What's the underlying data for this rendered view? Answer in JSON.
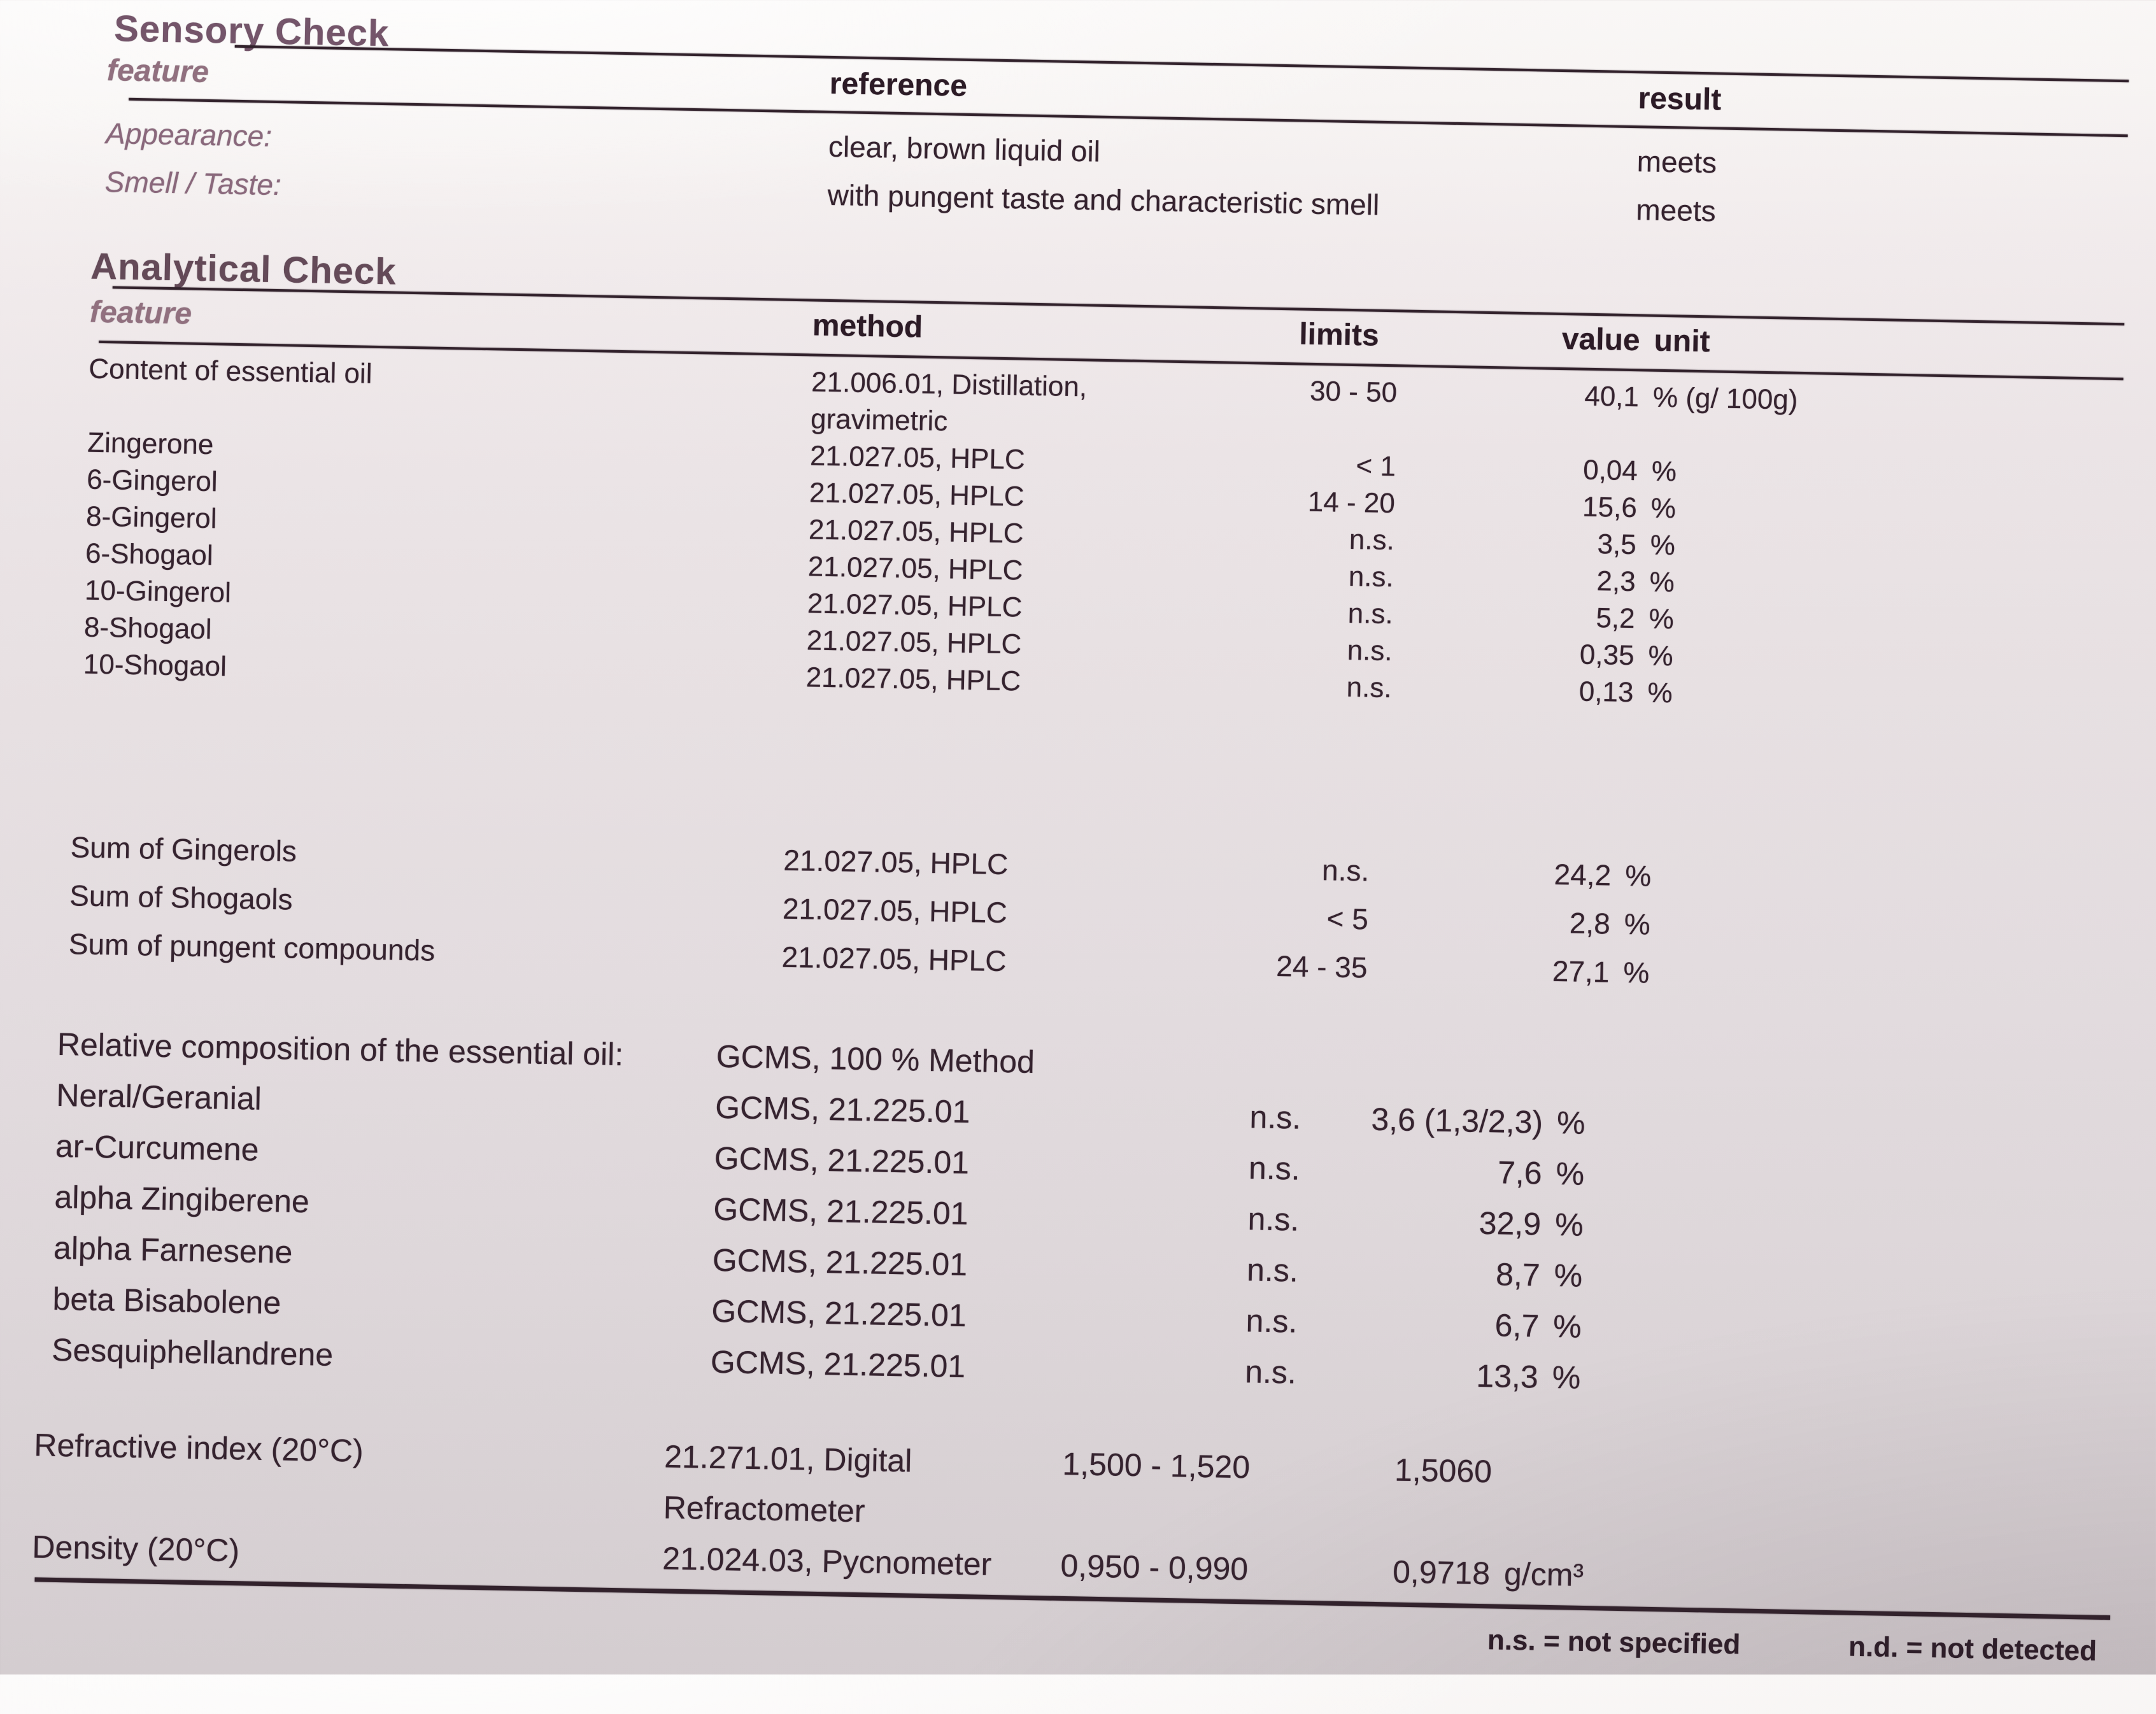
{
  "colors": {
    "ink": "#35232f",
    "heading_mauve": "#74556a",
    "label_mauve": "#8a687c",
    "rule": "#32222c"
  },
  "sensory": {
    "title": "Sensory Check",
    "columns": {
      "feature": "feature",
      "reference": "reference",
      "result": "result"
    },
    "rows": [
      {
        "feature": "Appearance:",
        "reference": "clear, brown liquid oil",
        "result": "meets"
      },
      {
        "feature": "Smell / Taste:",
        "reference": "with pungent taste and characteristic smell",
        "result": "meets"
      }
    ]
  },
  "analytical": {
    "title": "Analytical Check",
    "columns": {
      "feature": "feature",
      "method": "method",
      "limits": "limits",
      "value": "value",
      "unit": "unit"
    },
    "groups": [
      [
        {
          "feature": "Content of essential oil",
          "method": "21.006.01, Distillation,\ngravimetric",
          "limits": "30 - 50",
          "value": "40,1",
          "unit": "% (g/ 100g)"
        },
        {
          "feature": "Zingerone",
          "method": "21.027.05, HPLC",
          "limits": "< 1",
          "value": "0,04",
          "unit": "%"
        },
        {
          "feature": "6-Gingerol",
          "method": "21.027.05, HPLC",
          "limits": "14 - 20",
          "value": "15,6",
          "unit": "%"
        },
        {
          "feature": "8-Gingerol",
          "method": "21.027.05, HPLC",
          "limits": "n.s.",
          "value": "3,5",
          "unit": "%"
        },
        {
          "feature": "6-Shogaol",
          "method": "21.027.05, HPLC",
          "limits": "n.s.",
          "value": "2,3",
          "unit": "%"
        },
        {
          "feature": "10-Gingerol",
          "method": "21.027.05, HPLC",
          "limits": "n.s.",
          "value": "5,2",
          "unit": "%"
        },
        {
          "feature": "8-Shogaol",
          "method": "21.027.05, HPLC",
          "limits": "n.s.",
          "value": "0,35",
          "unit": "%"
        },
        {
          "feature": "10-Shogaol",
          "method": "21.027.05, HPLC",
          "limits": "n.s.",
          "value": "0,13",
          "unit": "%"
        }
      ],
      [
        {
          "feature": "Sum of Gingerols",
          "method": "21.027.05, HPLC",
          "limits": "n.s.",
          "value": "24,2",
          "unit": "%"
        },
        {
          "feature": "Sum of Shogaols",
          "method": "21.027.05, HPLC",
          "limits": "< 5",
          "value": "2,8",
          "unit": "%"
        },
        {
          "feature": "Sum of pungent compounds",
          "method": "21.027.05, HPLC",
          "limits": "24 - 35",
          "value": "27,1",
          "unit": "%"
        }
      ],
      [
        {
          "feature": "Relative composition of the essential oil:",
          "method": "GCMS, 100 % Method",
          "limits": "",
          "value": "",
          "unit": ""
        },
        {
          "feature": "Neral/Geranial",
          "method": "GCMS, 21.225.01",
          "limits": "n.s.",
          "value": "3,6 (1,3/2,3)",
          "unit": "%"
        },
        {
          "feature": "ar-Curcumene",
          "method": "GCMS, 21.225.01",
          "limits": "n.s.",
          "value": "7,6",
          "unit": "%"
        },
        {
          "feature": "alpha Zingiberene",
          "method": "GCMS, 21.225.01",
          "limits": "n.s.",
          "value": "32,9",
          "unit": "%"
        },
        {
          "feature": "alpha Farnesene",
          "method": "GCMS, 21.225.01",
          "limits": "n.s.",
          "value": "8,7",
          "unit": "%"
        },
        {
          "feature": "beta Bisabolene",
          "method": "GCMS, 21.225.01",
          "limits": "n.s.",
          "value": "6,7",
          "unit": "%"
        },
        {
          "feature": "Sesquiphellandrene",
          "method": "GCMS, 21.225.01",
          "limits": "n.s.",
          "value": "13,3",
          "unit": "%"
        }
      ],
      [
        {
          "feature": "Refractive index (20°C)",
          "method": "21.271.01, Digital\nRefractometer",
          "limits": "1,500 - 1,520",
          "value": "1,5060",
          "unit": ""
        },
        {
          "feature": "Density (20°C)",
          "method": "21.024.03, Pycnometer",
          "limits": "0,950 - 0,990",
          "value": "0,9718",
          "unit": "g/cm³"
        }
      ]
    ]
  },
  "footnotes": {
    "ns": "n.s. = not specified",
    "nd": "n.d. = not detected"
  }
}
